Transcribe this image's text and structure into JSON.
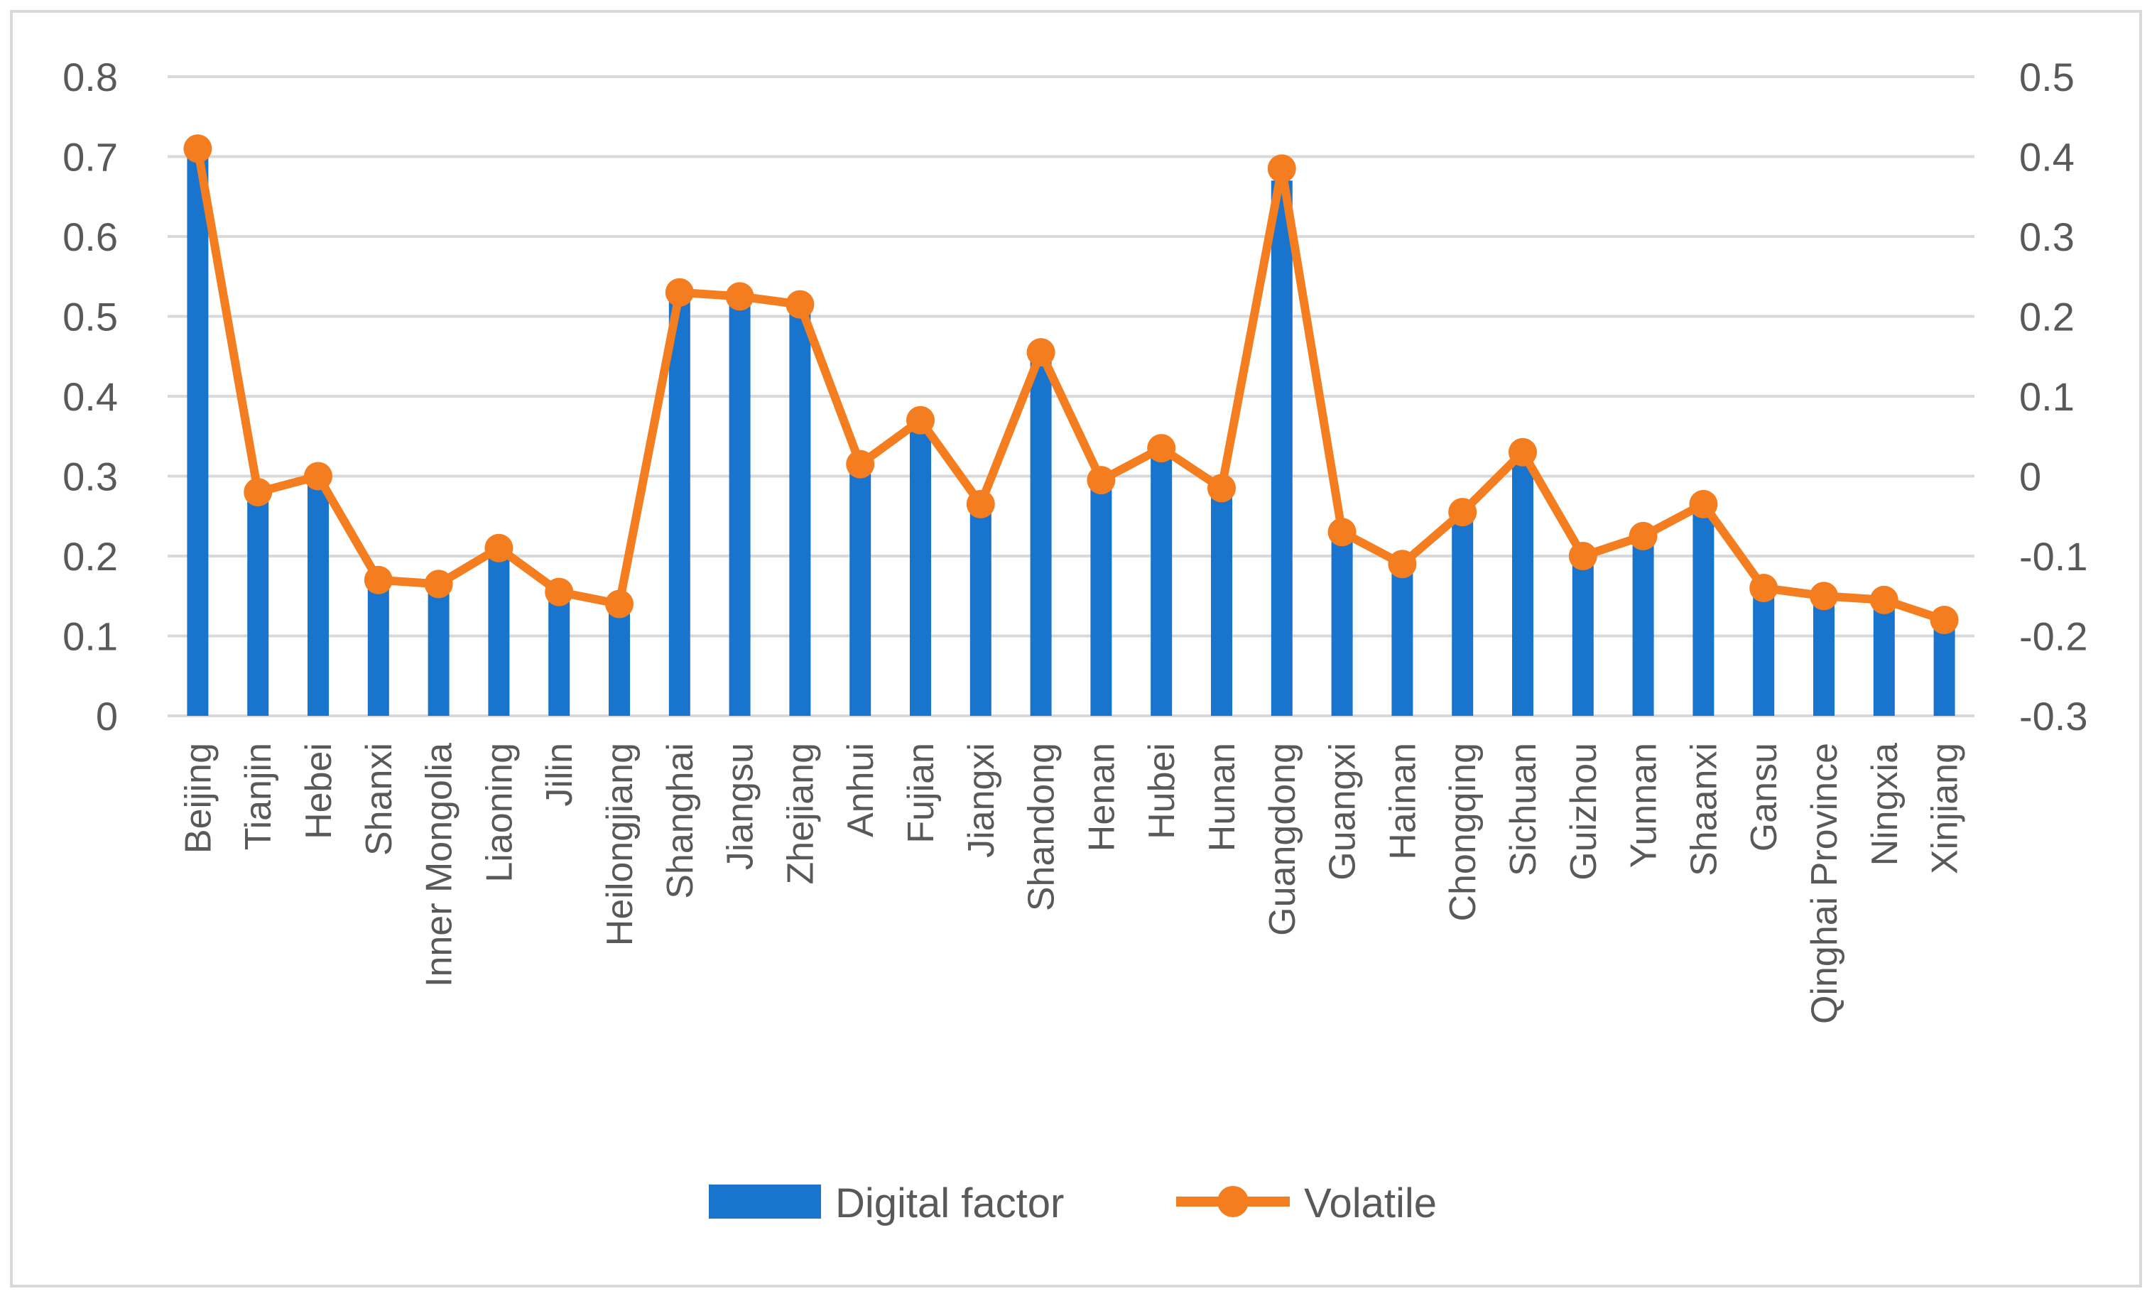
{
  "chart_data": {
    "type": "bar+line",
    "categories": [
      "Beijing",
      "Tianjin",
      "Hebei",
      "Shanxi",
      "Inner Mongolia",
      "Liaoning",
      "Jilin",
      "Heilongjiang",
      "Shanghai",
      "Jiangsu",
      "Zhejiang",
      "Anhui",
      "Fujian",
      "Jiangxi",
      "Shandong",
      "Henan",
      "Hubei",
      "Hunan",
      "Guangdong",
      "Guangxi",
      "Hainan",
      "Chongqing",
      "Sichuan",
      "Guizhou",
      "Yunnan",
      "Shaanxi",
      "Gansu",
      "Qinghai Province",
      "Ningxia",
      "Xinjiang"
    ],
    "series": [
      {
        "name": "Digital factor",
        "type": "bar",
        "axis": "left",
        "color": "#1874CD",
        "values": [
          0.71,
          0.28,
          0.3,
          0.17,
          0.165,
          0.21,
          0.15,
          0.14,
          0.53,
          0.53,
          0.51,
          0.32,
          0.37,
          0.27,
          0.45,
          0.3,
          0.34,
          0.29,
          0.67,
          0.23,
          0.19,
          0.25,
          0.33,
          0.2,
          0.22,
          0.27,
          0.16,
          0.15,
          0.145,
          0.12
        ]
      },
      {
        "name": "Volatile",
        "type": "line",
        "axis": "right",
        "color": "#F47D20",
        "values": [
          0.41,
          -0.02,
          0.0,
          -0.13,
          -0.135,
          -0.09,
          -0.145,
          -0.16,
          0.23,
          0.225,
          0.215,
          0.015,
          0.07,
          -0.035,
          0.155,
          -0.005,
          0.035,
          -0.015,
          0.385,
          -0.07,
          -0.11,
          -0.045,
          0.03,
          -0.1,
          -0.075,
          -0.035,
          -0.14,
          -0.15,
          -0.155,
          -0.18
        ]
      }
    ],
    "y_left": {
      "min": 0,
      "max": 0.8,
      "ticks": [
        "0",
        "0.1",
        "0.2",
        "0.3",
        "0.4",
        "0.5",
        "0.6",
        "0.7",
        "0.8"
      ]
    },
    "y_right": {
      "min": -0.3,
      "max": 0.5,
      "ticks": [
        "-0.3",
        "-0.2",
        "-0.1",
        "0",
        "0.1",
        "0.2",
        "0.3",
        "0.4",
        "0.5"
      ]
    },
    "grid": true,
    "legend": {
      "position": "bottom",
      "entries": [
        "Digital factor",
        "Volatile"
      ]
    },
    "title": "",
    "xlabel": "",
    "ylabel": ""
  }
}
